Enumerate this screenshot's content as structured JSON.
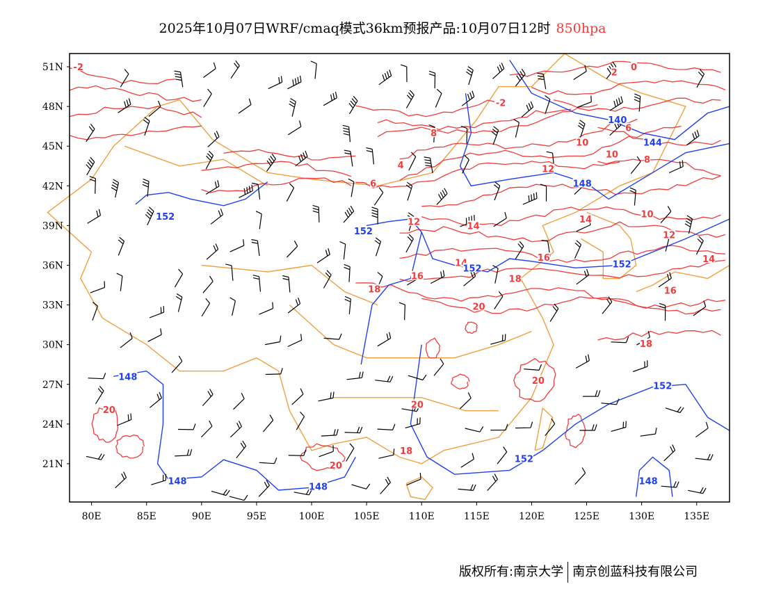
{
  "title": {
    "text": "2025年10月07日WRF/cmaq模式36km预报产品:10月07日12时",
    "level": "850hpa"
  },
  "footer": {
    "left": "版权所有:南京大学",
    "right": "南京创蓝科技有限公司"
  },
  "colors": {
    "temperature": "#f03c3c",
    "height": "#2040f0",
    "border": "#f0a040",
    "wind": "#000000"
  },
  "axes": {
    "lon_range": [
      78,
      138
    ],
    "lat_range": [
      18,
      52
    ],
    "lat_ticks": [
      {
        "v": 51,
        "l": "51N"
      },
      {
        "v": 48,
        "l": "48N"
      },
      {
        "v": 45,
        "l": "45N"
      },
      {
        "v": 42,
        "l": "42N"
      },
      {
        "v": 39,
        "l": "39N"
      },
      {
        "v": 36,
        "l": "36N"
      },
      {
        "v": 33,
        "l": "33N"
      },
      {
        "v": 30,
        "l": "30N"
      },
      {
        "v": 27,
        "l": "27N"
      },
      {
        "v": 24,
        "l": "24N"
      },
      {
        "v": 21,
        "l": "21N"
      }
    ],
    "lon_ticks": [
      {
        "v": 80,
        "l": "80E"
      },
      {
        "v": 85,
        "l": "85E"
      },
      {
        "v": 90,
        "l": "90E"
      },
      {
        "v": 95,
        "l": "95E"
      },
      {
        "v": 100,
        "l": "100E"
      },
      {
        "v": 105,
        "l": "105E"
      },
      {
        "v": 110,
        "l": "110E"
      },
      {
        "v": 115,
        "l": "115E"
      },
      {
        "v": 120,
        "l": "120E"
      },
      {
        "v": 125,
        "l": "125E"
      },
      {
        "v": 130,
        "l": "130E"
      },
      {
        "v": 135,
        "l": "135E"
      }
    ]
  },
  "contour_labels": [
    {
      "t": "-2",
      "k": "temp",
      "lon": 78.8,
      "lat": 51
    },
    {
      "t": "2",
      "k": "temp",
      "lon": 127.5,
      "lat": 50.6
    },
    {
      "t": "0",
      "k": "temp",
      "lon": 129.3,
      "lat": 51
    },
    {
      "t": "-2",
      "k": "temp",
      "lon": 117.2,
      "lat": 48.3
    },
    {
      "t": "140",
      "k": "hgt",
      "lon": 127.8,
      "lat": 47
    },
    {
      "t": "144",
      "k": "hgt",
      "lon": 131,
      "lat": 45.3
    },
    {
      "t": "8",
      "k": "temp",
      "lon": 111.1,
      "lat": 46
    },
    {
      "t": "6",
      "k": "temp",
      "lon": 128.8,
      "lat": 46.4
    },
    {
      "t": "10",
      "k": "temp",
      "lon": 124.6,
      "lat": 45.3
    },
    {
      "t": "10",
      "k": "temp",
      "lon": 127.3,
      "lat": 44.4
    },
    {
      "t": "8",
      "k": "temp",
      "lon": 130.5,
      "lat": 44
    },
    {
      "t": "4",
      "k": "temp",
      "lon": 108.1,
      "lat": 43.6
    },
    {
      "t": "12",
      "k": "temp",
      "lon": 121.5,
      "lat": 43.3
    },
    {
      "t": "148",
      "k": "hgt",
      "lon": 124.6,
      "lat": 42.2
    },
    {
      "t": "6",
      "k": "temp",
      "lon": 105.6,
      "lat": 42.2
    },
    {
      "t": "152",
      "k": "hgt",
      "lon": 86.7,
      "lat": 39.7
    },
    {
      "t": "12",
      "k": "temp",
      "lon": 109.3,
      "lat": 39.3
    },
    {
      "t": "14",
      "k": "temp",
      "lon": 114.7,
      "lat": 39
    },
    {
      "t": "14",
      "k": "temp",
      "lon": 124.9,
      "lat": 39.5
    },
    {
      "t": "10",
      "k": "temp",
      "lon": 130.5,
      "lat": 39.9
    },
    {
      "t": "12",
      "k": "temp",
      "lon": 132.5,
      "lat": 38.3
    },
    {
      "t": "152",
      "k": "hgt",
      "lon": 104.7,
      "lat": 38.6
    },
    {
      "t": "14",
      "k": "temp",
      "lon": 113.6,
      "lat": 36.2
    },
    {
      "t": "152",
      "k": "hgt",
      "lon": 114.6,
      "lat": 35.8
    },
    {
      "t": "16",
      "k": "temp",
      "lon": 121.1,
      "lat": 36.6
    },
    {
      "t": "152",
      "k": "hgt",
      "lon": 128.2,
      "lat": 36.1
    },
    {
      "t": "14",
      "k": "temp",
      "lon": 136.1,
      "lat": 36.5
    },
    {
      "t": "18",
      "k": "temp",
      "lon": 105.7,
      "lat": 34.2
    },
    {
      "t": "16",
      "k": "temp",
      "lon": 109.6,
      "lat": 35.2
    },
    {
      "t": "18",
      "k": "temp",
      "lon": 118.5,
      "lat": 35
    },
    {
      "t": "16",
      "k": "temp",
      "lon": 132.6,
      "lat": 34.1
    },
    {
      "t": "20",
      "k": "temp",
      "lon": 115.2,
      "lat": 32.9
    },
    {
      "t": "18",
      "k": "temp",
      "lon": 130.4,
      "lat": 30.1
    },
    {
      "t": "20",
      "k": "temp",
      "lon": 120.6,
      "lat": 27.3
    },
    {
      "t": "152",
      "k": "hgt",
      "lon": 131.9,
      "lat": 26.9
    },
    {
      "t": "148",
      "k": "hgt",
      "lon": 83.3,
      "lat": 27.6
    },
    {
      "t": "20",
      "k": "temp",
      "lon": 81.6,
      "lat": 25.1
    },
    {
      "t": "20",
      "k": "temp",
      "lon": 109.6,
      "lat": 25.5
    },
    {
      "t": "18",
      "k": "temp",
      "lon": 108.6,
      "lat": 22
    },
    {
      "t": "20",
      "k": "temp",
      "lon": 102.2,
      "lat": 20.9
    },
    {
      "t": "152",
      "k": "hgt",
      "lon": 119.3,
      "lat": 21.4
    },
    {
      "t": "148",
      "k": "hgt",
      "lon": 87.8,
      "lat": 19.7
    },
    {
      "t": "148",
      "k": "hgt",
      "lon": 100.6,
      "lat": 19.3
    },
    {
      "t": "148",
      "k": "hgt",
      "lon": 130.6,
      "lat": 19.7
    }
  ]
}
